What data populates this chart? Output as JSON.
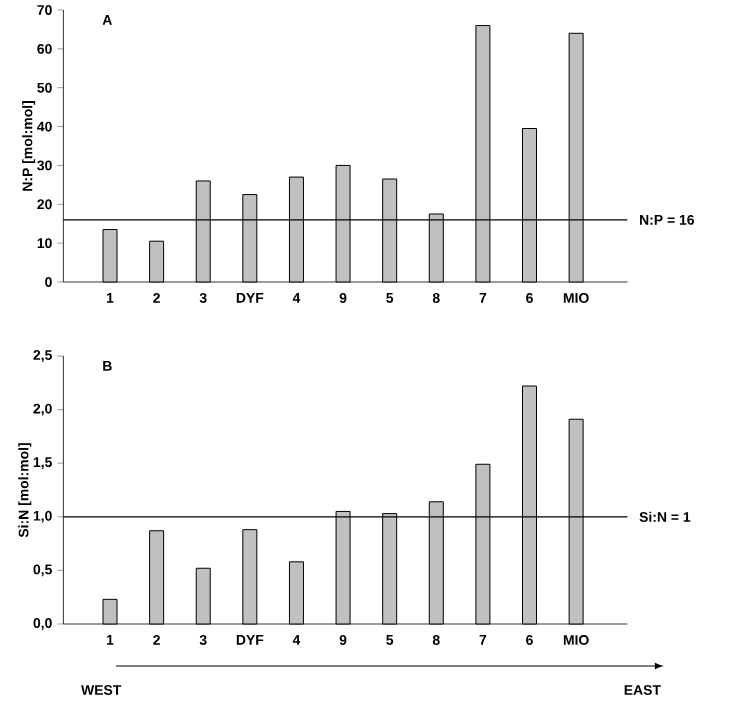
{
  "chart_data": [
    {
      "type": "bar",
      "ylabel": "N:P [mol:mol]",
      "categories": [
        "1",
        "2",
        "3",
        "DYF",
        "4",
        "9",
        "5",
        "8",
        "7",
        "6",
        "MIO"
      ],
      "values": [
        13.5,
        10.5,
        26,
        22.5,
        27,
        30,
        26.5,
        17.5,
        66,
        39.5,
        64
      ],
      "color": "#c0c0c0",
      "ylim": [
        0,
        70
      ],
      "yticks": [
        0,
        10,
        20,
        30,
        40,
        50,
        60,
        70
      ],
      "ref_lines": [
        {
          "axis": "y",
          "value": 16,
          "label": "N:P = 16"
        }
      ],
      "annotations": [
        "A"
      ]
    },
    {
      "type": "bar",
      "ylabel": "Si:N [mol:mol]",
      "categories": [
        "1",
        "2",
        "3",
        "DYF",
        "4",
        "9",
        "5",
        "8",
        "7",
        "6",
        "MIO"
      ],
      "values": [
        0.23,
        0.87,
        0.52,
        0.88,
        0.58,
        1.05,
        1.03,
        1.14,
        1.49,
        2.22,
        1.91
      ],
      "color": "#c0c0c0",
      "ylim": [
        0,
        2.5
      ],
      "yticks": [
        {
          "value": 0,
          "label": "0,0"
        },
        {
          "value": 0.5,
          "label": "0,5"
        },
        {
          "value": 1,
          "label": "1,0"
        },
        {
          "value": 1.5,
          "label": "1,5"
        },
        {
          "value": 2,
          "label": "2,0"
        },
        {
          "value": 2.5,
          "label": "2,5"
        }
      ],
      "ref_lines": [
        {
          "axis": "y",
          "value": 1,
          "label": "Si:N = 1"
        }
      ],
      "annotations": [
        "B",
        "WEST",
        "EAST"
      ]
    }
  ]
}
